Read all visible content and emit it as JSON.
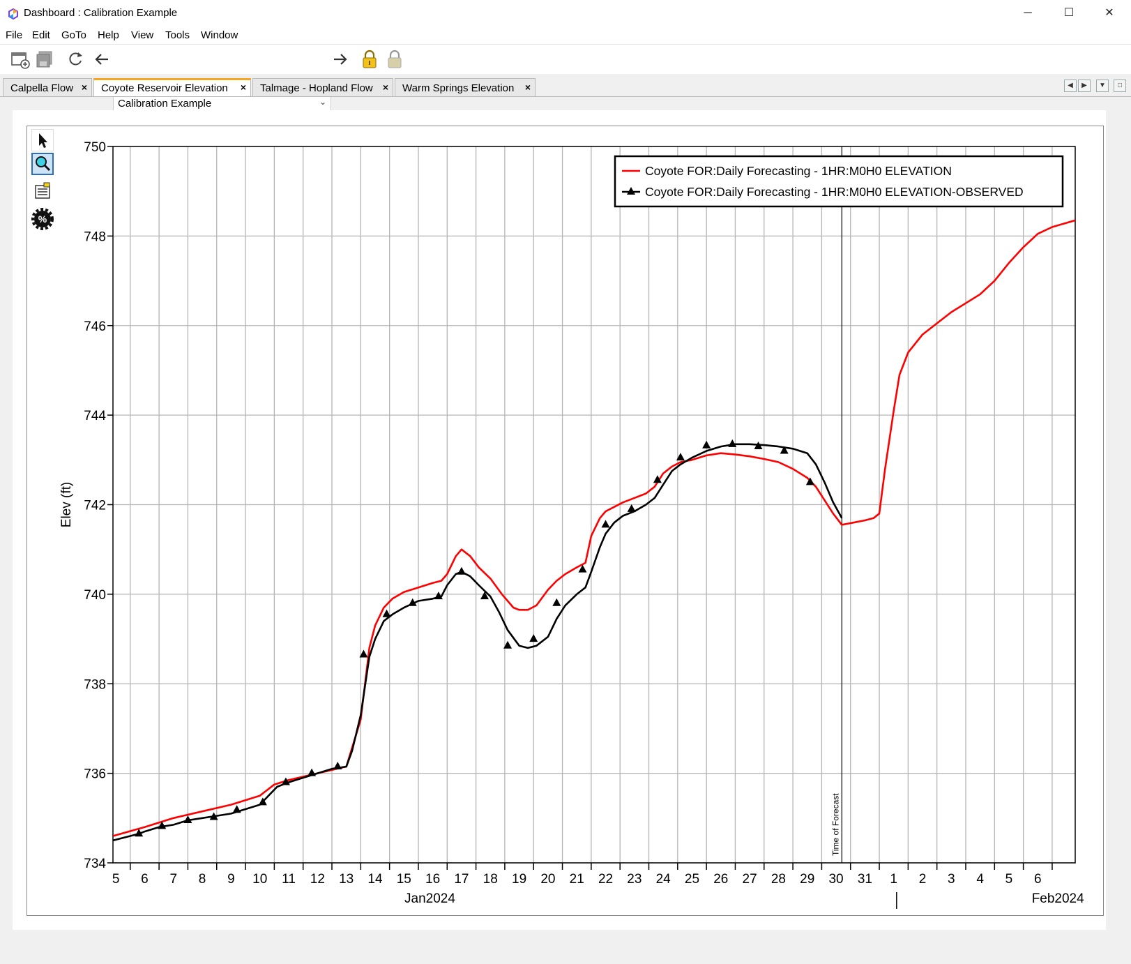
{
  "window": {
    "title": "Dashboard : Calibration Example",
    "minimize": "─",
    "maximize": "☐",
    "close": "✕"
  },
  "menu": [
    "File",
    "Edit",
    "GoTo",
    "Help",
    "View",
    "Tools",
    "Window"
  ],
  "toolbar": {
    "combo_value": "Calibration Example",
    "icons": [
      "new-dashboard-icon",
      "save-icon",
      "refresh-icon",
      "back-arrow-icon",
      "forward-arrow-icon",
      "lock-icon",
      "unlock-icon"
    ]
  },
  "tabs": [
    {
      "label": "Calpella Flow",
      "active": false
    },
    {
      "label": "Coyote Reservoir Elevation",
      "active": true
    },
    {
      "label": "Talmage - Hopland Flow",
      "active": false
    },
    {
      "label": "Warm Springs Elevation",
      "active": false
    }
  ],
  "tab_close": "×",
  "chart_data": {
    "type": "line",
    "title": "",
    "ylabel": "Elev (ft)",
    "ylim": [
      734,
      750
    ],
    "yticks": [
      734,
      736,
      738,
      740,
      742,
      744,
      746,
      748,
      750
    ],
    "xlim": [
      4.9,
      38.3
    ],
    "x_unit": "day (Jan 2024, continuing into Feb 2024)",
    "x_tick_labels": [
      "5",
      "6",
      "7",
      "8",
      "9",
      "10",
      "11",
      "12",
      "13",
      "14",
      "15",
      "16",
      "17",
      "18",
      "19",
      "20",
      "21",
      "22",
      "23",
      "24",
      "25",
      "26",
      "27",
      "28",
      "29",
      "30",
      "31",
      "1",
      "2",
      "3",
      "4",
      "5",
      "6"
    ],
    "x_tick_days": [
      5,
      6,
      7,
      8,
      9,
      10,
      11,
      12,
      13,
      14,
      15,
      16,
      17,
      18,
      19,
      20,
      21,
      22,
      23,
      24,
      25,
      26,
      27,
      28,
      29,
      30,
      31,
      32,
      33,
      34,
      35,
      36,
      37
    ],
    "month_labels": [
      {
        "text": "Jan2024",
        "day": 15.9
      },
      {
        "text": "Feb2024",
        "day": 37.7
      }
    ],
    "month_divider_day": 32.1,
    "grid": true,
    "legend_position": "top-right",
    "annotation": {
      "text": "Time of Forecast",
      "day": 30.2
    },
    "series": [
      {
        "name": "Coyote FOR:Daily Forecasting - 1HR:M0H0 ELEVATION",
        "color": "#ff0000",
        "marker": "none",
        "x": [
          4.9,
          6,
          7,
          8,
          9,
          10,
          10.5,
          11,
          12,
          13,
          13.5,
          13.8,
          14,
          14.3,
          14.6,
          15,
          15.5,
          16,
          16.3,
          16.5,
          16.8,
          17,
          17.3,
          17.6,
          18,
          18.4,
          18.8,
          19,
          19.3,
          19.6,
          20,
          20.3,
          20.6,
          21,
          21.3,
          21.5,
          21.8,
          22,
          22.3,
          22.6,
          23,
          23.4,
          23.7,
          24,
          24.3,
          24.6,
          25,
          25.5,
          26,
          26.5,
          27,
          27.5,
          28,
          28.5,
          29,
          29.3,
          29.6,
          29.9,
          30.2,
          30.6,
          31,
          31.3,
          31.5,
          31.7,
          32,
          32.2,
          32.5,
          33,
          33.5,
          34,
          34.5,
          35,
          35.5,
          36,
          36.5,
          37,
          37.5,
          38.3
        ],
        "y": [
          734.6,
          734.8,
          735,
          735.15,
          735.3,
          735.5,
          735.75,
          735.85,
          736.0,
          736.15,
          737.2,
          738.8,
          739.3,
          739.7,
          739.9,
          740.05,
          740.15,
          740.25,
          740.3,
          740.45,
          740.85,
          741.0,
          740.85,
          740.6,
          740.35,
          740,
          739.7,
          739.65,
          739.65,
          739.75,
          740.1,
          740.3,
          740.45,
          740.6,
          740.7,
          741.3,
          741.7,
          741.85,
          741.95,
          742.05,
          742.15,
          742.25,
          742.4,
          742.7,
          742.85,
          742.95,
          743.0,
          743.1,
          743.15,
          743.12,
          743.08,
          743.02,
          742.95,
          742.8,
          742.6,
          742.4,
          742.1,
          741.8,
          741.55,
          741.6,
          741.65,
          741.7,
          741.8,
          742.8,
          744.1,
          744.9,
          745.4,
          745.8,
          746.05,
          746.3,
          746.5,
          746.7,
          747.0,
          747.4,
          747.75,
          748.05,
          748.2,
          748.35
        ]
      },
      {
        "name": "Coyote FOR:Daily Forecasting - 1HR:M0H0 ELEVATION-OBSERVED",
        "color": "#000000",
        "marker": "triangle",
        "x": [
          4.9,
          5.5,
          5.8,
          6,
          6.5,
          7,
          7.5,
          8,
          8.5,
          9,
          9.5,
          10,
          10.3,
          10.6,
          11,
          11.5,
          12,
          12.5,
          13,
          13.2,
          13.5,
          13.8,
          14,
          14.3,
          14.6,
          15,
          15.5,
          16,
          16.3,
          16.5,
          16.8,
          17,
          17.3,
          17.6,
          18,
          18.3,
          18.6,
          19,
          19.3,
          19.6,
          20,
          20.3,
          20.6,
          21,
          21.3,
          21.5,
          21.8,
          22,
          22.3,
          22.6,
          23,
          23.4,
          23.7,
          24,
          24.3,
          24.6,
          25,
          25.5,
          26,
          26.5,
          27,
          27.5,
          28,
          28.5,
          29,
          29.3,
          29.6,
          29.9,
          30.2
        ],
        "y": [
          734.5,
          734.6,
          734.65,
          734.7,
          734.8,
          734.85,
          734.95,
          735.0,
          735.05,
          735.1,
          735.2,
          735.3,
          735.5,
          735.7,
          735.8,
          735.9,
          736.0,
          736.1,
          736.15,
          736.5,
          737.3,
          738.6,
          739.0,
          739.4,
          739.55,
          739.7,
          739.85,
          739.9,
          739.95,
          740.2,
          740.45,
          740.5,
          740.4,
          740.2,
          739.95,
          739.6,
          739.2,
          738.85,
          738.8,
          738.85,
          739.05,
          739.45,
          739.75,
          740.0,
          740.15,
          740.5,
          741.05,
          741.35,
          741.6,
          741.75,
          741.85,
          742.0,
          742.15,
          742.45,
          742.75,
          742.9,
          743.05,
          743.2,
          743.3,
          743.35,
          743.35,
          743.33,
          743.3,
          743.25,
          743.15,
          742.9,
          742.5,
          742.05,
          741.7
        ],
        "marker_x": [
          5.8,
          6.6,
          7.5,
          8.4,
          9.2,
          10.1,
          10.9,
          11.8,
          12.7,
          13.6,
          14.4,
          15.3,
          16.2,
          17.0,
          17.8,
          18.6,
          19.5,
          20.3,
          21.2,
          22.0,
          22.9,
          23.8,
          24.6,
          25.5,
          26.4,
          27.3,
          28.2,
          29.1
        ],
        "marker_y": [
          734.65,
          734.82,
          734.95,
          735.02,
          735.18,
          735.35,
          735.8,
          736.0,
          736.15,
          738.65,
          739.55,
          739.8,
          739.95,
          740.5,
          739.95,
          738.85,
          739.0,
          739.8,
          740.55,
          741.55,
          741.9,
          742.55,
          743.05,
          743.32,
          743.35,
          743.3,
          743.2,
          742.5
        ]
      }
    ]
  }
}
